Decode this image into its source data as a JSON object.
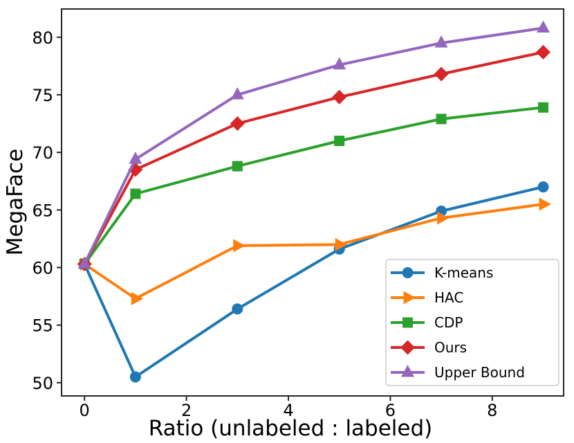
{
  "chart_data": {
    "type": "line",
    "xlabel": "Ratio (unlabeled : labeled)",
    "ylabel": "MegaFace",
    "x": [
      0,
      1,
      3,
      5,
      7,
      9
    ],
    "xticks": [
      0,
      2,
      4,
      6,
      8
    ],
    "yticks": [
      50,
      55,
      60,
      65,
      70,
      75,
      80
    ],
    "xlim": [
      -0.45,
      9.4
    ],
    "ylim": [
      48.85,
      82.45
    ],
    "grid": false,
    "legend_position": "lower right",
    "axis_color": "#262626",
    "legend_border_color": "#cccccc",
    "series": [
      {
        "name": "K-means",
        "color": "#1f77b4",
        "marker": "circle",
        "values": [
          60.3,
          50.5,
          56.4,
          61.6,
          64.9,
          67.0
        ]
      },
      {
        "name": "HAC",
        "color": "#ff7f0e",
        "marker": "triangle-right",
        "values": [
          60.3,
          57.3,
          61.9,
          62.0,
          64.3,
          65.5
        ]
      },
      {
        "name": "CDP",
        "color": "#2ca02c",
        "marker": "square",
        "values": [
          60.3,
          66.4,
          68.8,
          71.0,
          72.9,
          73.9
        ]
      },
      {
        "name": "Ours",
        "color": "#d62728",
        "marker": "diamond",
        "values": [
          60.3,
          68.5,
          72.5,
          74.8,
          76.8,
          78.7
        ]
      },
      {
        "name": "Upper Bound",
        "color": "#9467bd",
        "marker": "triangle-up",
        "values": [
          60.3,
          69.4,
          75.0,
          77.6,
          79.5,
          80.8
        ]
      }
    ]
  }
}
